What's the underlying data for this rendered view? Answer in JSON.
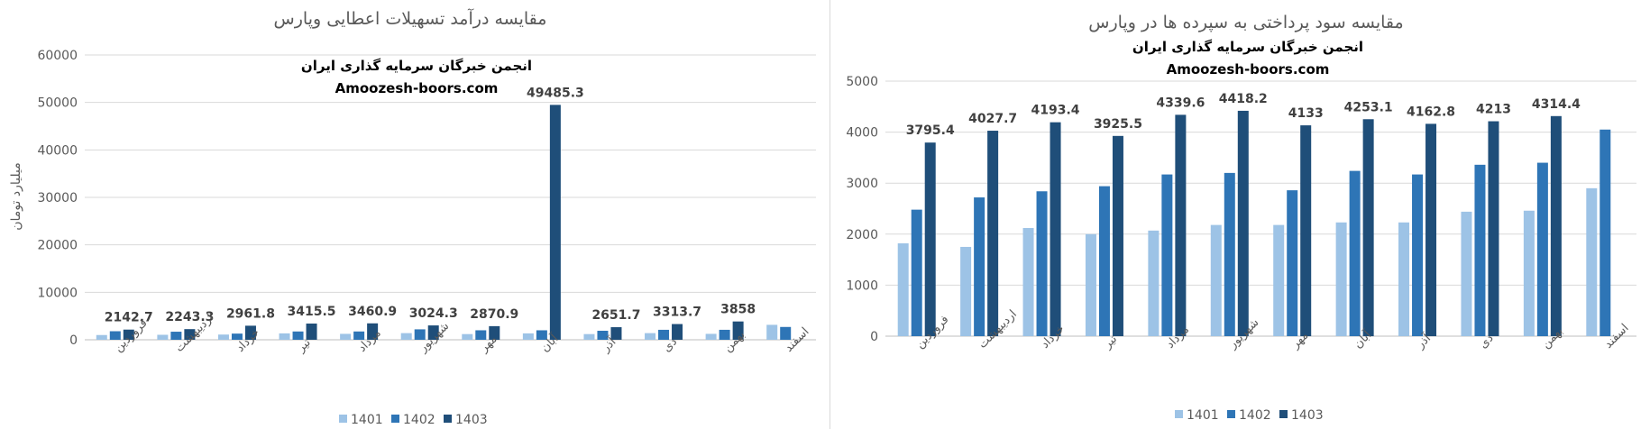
{
  "colors": {
    "s1401": "#9dc3e6",
    "s1402": "#2e75b6",
    "s1403": "#1f4e79",
    "grid": "#d9d9d9",
    "axis": "#bfbfbf"
  },
  "chart_data": [
    {
      "type": "bar",
      "title": "مقایسه درآمد تسهیلات اعطایی وپارس",
      "watermark": [
        "انجمن خبرگان سرمایه گذاری ایران",
        "Amoozesh-boors.com"
      ],
      "ylabel": "میلیارد تومان",
      "xlabel": "",
      "ylim": [
        0,
        60000
      ],
      "yticks": [
        0,
        10000,
        20000,
        30000,
        40000,
        50000,
        60000
      ],
      "grid": true,
      "legend_position": "bottom",
      "categories": [
        "فروردین",
        "اردیبهشت",
        "خرداد",
        "تیر",
        "مرداد",
        "شهریور",
        "مهر",
        "آبان",
        "آذر",
        "دی",
        "بهمن",
        "اسفند"
      ],
      "series": [
        {
          "name": "1401",
          "values": [
            1000,
            1050,
            1100,
            1350,
            1250,
            1400,
            1200,
            1350,
            1200,
            1400,
            1250,
            3150
          ]
        },
        {
          "name": "1402",
          "values": [
            1800,
            1700,
            1300,
            1750,
            1750,
            2200,
            2000,
            2000,
            1900,
            2100,
            2100,
            2700
          ]
        },
        {
          "name": "1403",
          "values": [
            2142.7,
            2243.3,
            2961.8,
            3415.5,
            3460.9,
            3024.3,
            2870.9,
            49485.3,
            2651.7,
            3313.7,
            3858,
            null
          ]
        }
      ],
      "data_labels": [
        "2142.7",
        "2243.3",
        "2961.8",
        "3415.5",
        "3460.9",
        "3024.3",
        "2870.9",
        "49485.3",
        "2651.7",
        "3313.7",
        "3858",
        ""
      ]
    },
    {
      "type": "bar",
      "title": "مقایسه سود پرداختی به سپرده ها در وپارس",
      "watermark": [
        "انجمن خبرگان سرمایه گذاری ایران",
        "Amoozesh-boors.com"
      ],
      "ylabel": "",
      "xlabel": "",
      "ylim": [
        0,
        5000
      ],
      "yticks": [
        0,
        1000,
        2000,
        3000,
        4000,
        5000
      ],
      "grid": true,
      "legend_position": "bottom",
      "categories": [
        "فروردین",
        "اردیبهشت",
        "خرداد",
        "تیر",
        "مرداد",
        "شهریور",
        "مهر",
        "آبان",
        "آذر",
        "دی",
        "بهمن",
        "اسفند"
      ],
      "series": [
        {
          "name": "1401",
          "values": [
            1820,
            1750,
            2120,
            2000,
            2070,
            2180,
            2180,
            2230,
            2230,
            2440,
            2460,
            2900
          ]
        },
        {
          "name": "1402",
          "values": [
            2480,
            2720,
            2840,
            2940,
            3170,
            3200,
            2860,
            3240,
            3170,
            3360,
            3400,
            4050
          ]
        },
        {
          "name": "1403",
          "values": [
            3795.4,
            4027.7,
            4193.4,
            3925.5,
            4339.6,
            4418.2,
            4133,
            4253.1,
            4162.8,
            4213,
            4314.4,
            null
          ]
        }
      ],
      "data_labels": [
        "3795.4",
        "4027.7",
        "4193.4",
        "3925.5",
        "4339.6",
        "4418.2",
        "4133",
        "4253.1",
        "4162.8",
        "4213",
        "4314.4",
        ""
      ]
    }
  ]
}
